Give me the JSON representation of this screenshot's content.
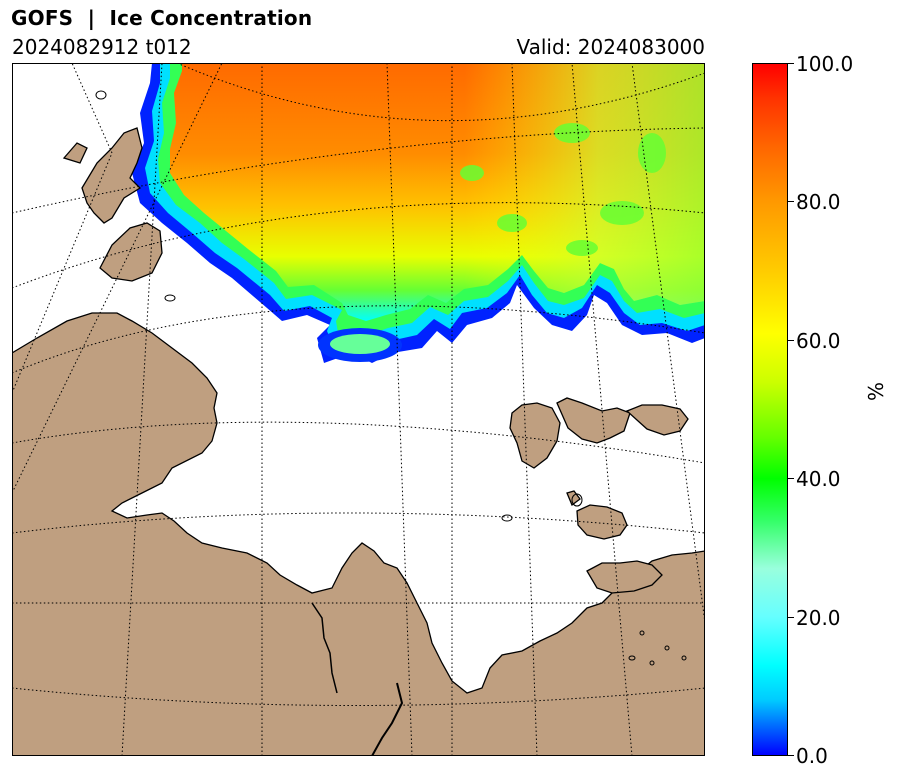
{
  "header": {
    "title": "GOFS  |  Ice Concentration",
    "run": "2024082912 t012",
    "valid": "Valid: 2024083000"
  },
  "colorbar": {
    "label": "%",
    "ticks": [
      "0.0",
      "20.0",
      "40.0",
      "60.0",
      "80.0",
      "100.0"
    ],
    "min": 0,
    "max": 100
  },
  "map": {
    "field": "ice concentration",
    "land_color": "#bf9f80",
    "ocean_color": "#ffffff",
    "gridlines": "dotted graticule"
  }
}
